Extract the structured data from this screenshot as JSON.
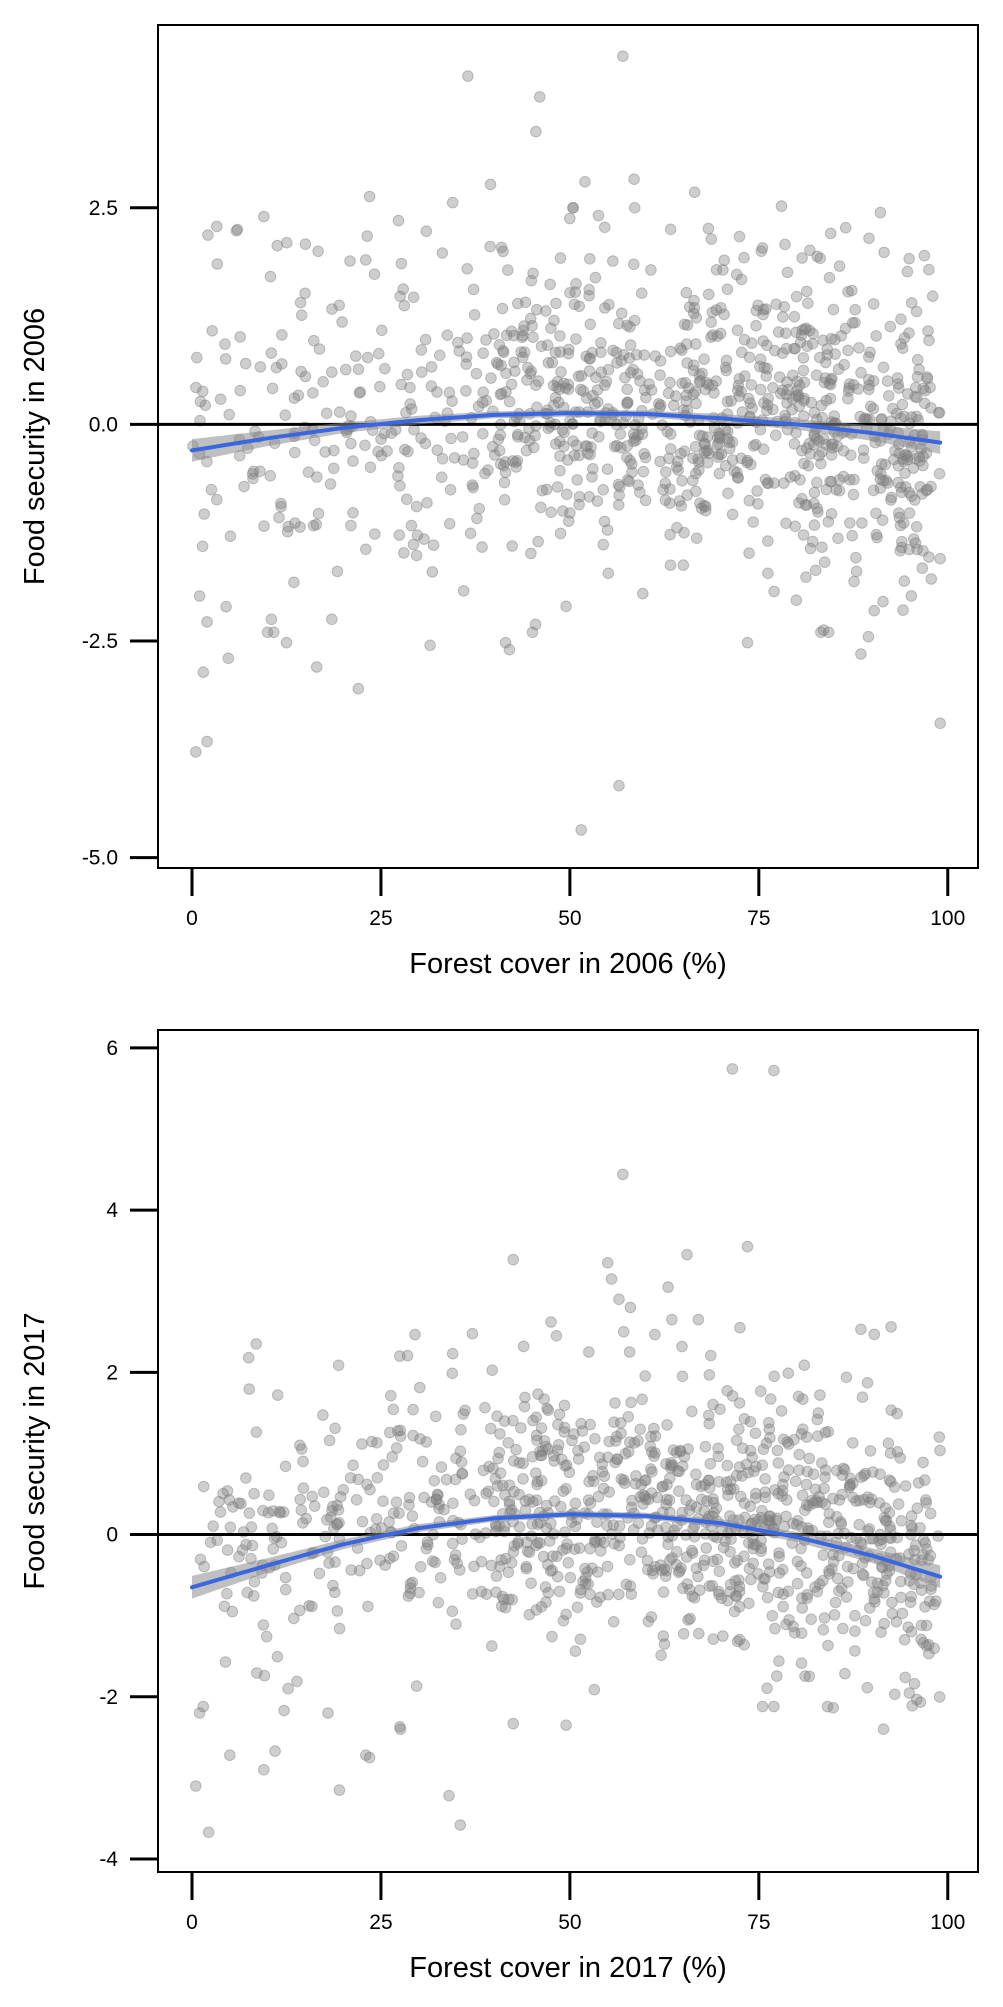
{
  "colors": {
    "points": "#7f7f7f",
    "fit": "#3a67e0",
    "ribbon": "#8c8c8c",
    "zero_line": "#000000",
    "axis": "#000000"
  },
  "chart_data": [
    {
      "type": "scatter",
      "title": "",
      "xlabel": "Forest cover in 2006 (%)",
      "ylabel": "Food security in 2006",
      "xlim": [
        -4.5,
        104
      ],
      "ylim": [
        -5.12,
        4.61
      ],
      "x_ticks": [
        0,
        25,
        50,
        75,
        100
      ],
      "x_tick_labels": [
        "0",
        "25",
        "50",
        "75",
        "100"
      ],
      "y_ticks": [
        -5.0,
        -2.5,
        0.0,
        2.5
      ],
      "y_tick_labels": [
        "-5.0",
        "-2.5",
        "0.0",
        "2.5"
      ],
      "reference_line_y": 0,
      "grid": false,
      "n_points": 1050,
      "scatter_y_sd": 0.9,
      "point_seed": 2006,
      "fit": {
        "method": "quadratic",
        "x": [
          0,
          10,
          20,
          30,
          40,
          50,
          60,
          70,
          80,
          90,
          99
        ],
        "y": [
          -0.3,
          -0.16,
          -0.04,
          0.05,
          0.11,
          0.13,
          0.12,
          0.07,
          0.0,
          -0.1,
          -0.21
        ],
        "band_halfwidth": [
          0.13,
          0.09,
          0.06,
          0.05,
          0.04,
          0.04,
          0.04,
          0.05,
          0.06,
          0.09,
          0.13
        ]
      },
      "notable_points": [
        {
          "x": 57.0,
          "y": 4.25
        },
        {
          "x": 36.5,
          "y": 4.02
        },
        {
          "x": 46.0,
          "y": 3.78
        },
        {
          "x": 45.5,
          "y": 3.38
        },
        {
          "x": 58.5,
          "y": 2.83
        },
        {
          "x": 39.5,
          "y": 2.77
        },
        {
          "x": 52.0,
          "y": 2.8
        },
        {
          "x": 23.5,
          "y": 2.63
        },
        {
          "x": 66.5,
          "y": 2.68
        },
        {
          "x": 34.5,
          "y": 2.56
        },
        {
          "x": 78.0,
          "y": 2.52
        },
        {
          "x": 9.5,
          "y": 2.4
        },
        {
          "x": 6.0,
          "y": 2.25
        },
        {
          "x": 86.5,
          "y": 2.27
        },
        {
          "x": 31.0,
          "y": 2.23
        },
        {
          "x": 15.0,
          "y": 2.08
        },
        {
          "x": 98.0,
          "y": 1.48
        },
        {
          "x": 1.0,
          "y": -1.98
        },
        {
          "x": 2.0,
          "y": -2.28
        },
        {
          "x": 1.5,
          "y": -2.86
        },
        {
          "x": 4.8,
          "y": -2.7
        },
        {
          "x": 10.5,
          "y": -2.25
        },
        {
          "x": 12.5,
          "y": -2.52
        },
        {
          "x": 18.5,
          "y": -2.25
        },
        {
          "x": 16.5,
          "y": -2.8
        },
        {
          "x": 22.0,
          "y": -3.05
        },
        {
          "x": 31.5,
          "y": -2.55
        },
        {
          "x": 41.5,
          "y": -2.52
        },
        {
          "x": 42.0,
          "y": -2.6
        },
        {
          "x": 49.5,
          "y": -2.1
        },
        {
          "x": 73.5,
          "y": -2.52
        },
        {
          "x": 89.5,
          "y": -2.45
        },
        {
          "x": 88.5,
          "y": -2.65
        },
        {
          "x": 0.5,
          "y": -3.78
        },
        {
          "x": 2.0,
          "y": -3.66
        },
        {
          "x": 56.5,
          "y": -4.17
        },
        {
          "x": 51.5,
          "y": -4.68
        },
        {
          "x": 99.0,
          "y": -3.45
        },
        {
          "x": 97.5,
          "y": -1.53
        },
        {
          "x": 99.0,
          "y": -1.55
        }
      ]
    },
    {
      "type": "scatter",
      "title": "",
      "xlabel": "Forest cover in 2017 (%)",
      "ylabel": "Food security in 2017",
      "xlim": [
        -4.5,
        104
      ],
      "ylim": [
        -4.16,
        6.22
      ],
      "x_ticks": [
        0,
        25,
        50,
        75,
        100
      ],
      "x_tick_labels": [
        "0",
        "25",
        "50",
        "75",
        "100"
      ],
      "y_ticks": [
        -4,
        -2,
        0,
        2,
        4,
        6
      ],
      "y_tick_labels": [
        "-4",
        "-2",
        "0",
        "2",
        "4",
        "6"
      ],
      "reference_line_y": 0,
      "grid": false,
      "n_points": 1050,
      "scatter_y_sd": 0.82,
      "point_seed": 2017,
      "fit": {
        "method": "quadratic",
        "x": [
          0,
          10,
          20,
          30,
          40,
          50,
          60,
          70,
          80,
          90,
          99
        ],
        "y": [
          -0.65,
          -0.38,
          -0.12,
          0.08,
          0.2,
          0.25,
          0.23,
          0.14,
          -0.03,
          -0.26,
          -0.52
        ],
        "band_halfwidth": [
          0.14,
          0.09,
          0.06,
          0.05,
          0.04,
          0.04,
          0.04,
          0.05,
          0.06,
          0.09,
          0.14
        ]
      },
      "notable_points": [
        {
          "x": 71.5,
          "y": 5.74
        },
        {
          "x": 77.0,
          "y": 5.72
        },
        {
          "x": 57.0,
          "y": 4.44
        },
        {
          "x": 73.5,
          "y": 3.55
        },
        {
          "x": 65.5,
          "y": 3.45
        },
        {
          "x": 42.5,
          "y": 3.39
        },
        {
          "x": 55.0,
          "y": 3.35
        },
        {
          "x": 55.5,
          "y": 3.15
        },
        {
          "x": 63.0,
          "y": 3.05
        },
        {
          "x": 56.5,
          "y": 2.9
        },
        {
          "x": 58.0,
          "y": 2.8
        },
        {
          "x": 47.5,
          "y": 2.62
        },
        {
          "x": 63.5,
          "y": 2.65
        },
        {
          "x": 67.0,
          "y": 2.65
        },
        {
          "x": 72.5,
          "y": 2.55
        },
        {
          "x": 88.5,
          "y": 2.53
        },
        {
          "x": 92.5,
          "y": 2.56
        },
        {
          "x": 8.5,
          "y": 2.35
        },
        {
          "x": 7.5,
          "y": 2.18
        },
        {
          "x": 34.5,
          "y": 2.23
        },
        {
          "x": 27.5,
          "y": 2.2
        },
        {
          "x": 52.5,
          "y": 2.25
        },
        {
          "x": 1.0,
          "y": -2.2
        },
        {
          "x": 1.5,
          "y": -2.12
        },
        {
          "x": 0.5,
          "y": -3.1
        },
        {
          "x": 2.2,
          "y": -3.67
        },
        {
          "x": 5.0,
          "y": -2.72
        },
        {
          "x": 9.5,
          "y": -2.9
        },
        {
          "x": 11.0,
          "y": -2.67
        },
        {
          "x": 18.0,
          "y": -2.2
        },
        {
          "x": 19.5,
          "y": -3.15
        },
        {
          "x": 23.0,
          "y": -2.72
        },
        {
          "x": 23.5,
          "y": -2.75
        },
        {
          "x": 27.5,
          "y": -2.37
        },
        {
          "x": 34.0,
          "y": -3.22
        },
        {
          "x": 35.5,
          "y": -3.58
        },
        {
          "x": 42.5,
          "y": -2.33
        },
        {
          "x": 49.5,
          "y": -2.35
        },
        {
          "x": 75.5,
          "y": -2.12
        },
        {
          "x": 77.0,
          "y": -2.12
        }
      ]
    }
  ]
}
